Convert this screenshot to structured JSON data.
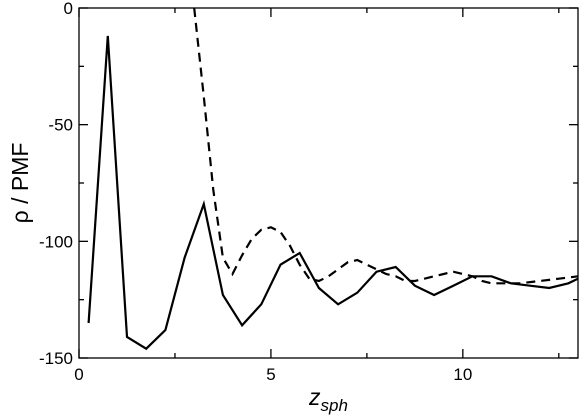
{
  "chart_data": {
    "type": "line",
    "title": "",
    "xlabel": "z",
    "xlabel_sub": "sph",
    "ylabel": "ρ / PMF",
    "xlim": [
      0,
      13
    ],
    "ylim": [
      -150,
      0
    ],
    "xticks": [
      0,
      5,
      10
    ],
    "xtick_labels": [
      "0",
      "5",
      "10"
    ],
    "yticks": [
      0,
      -50,
      -100,
      -150
    ],
    "ytick_labels": [
      "0",
      "-50",
      "-100",
      "-150"
    ],
    "grid": false,
    "legend": "none",
    "series": [
      {
        "style": "solid",
        "color": "#000000",
        "x": [
          0.25,
          0.75,
          1.25,
          1.75,
          2.25,
          2.75,
          3.25,
          3.75,
          4.25,
          4.75,
          5.25,
          5.75,
          6.25,
          6.75,
          7.25,
          7.75,
          8.25,
          8.75,
          9.25,
          9.75,
          10.25,
          10.75,
          11.25,
          11.75,
          12.25,
          12.75,
          13.0
        ],
        "y": [
          -135,
          -12,
          -141,
          -146,
          -138,
          -107,
          -84,
          -123,
          -136,
          -127,
          -110,
          -105,
          -120,
          -127,
          -122,
          -113,
          -111,
          -119,
          -123,
          -119,
          -115,
          -115,
          -118,
          -119,
          -120,
          -118,
          -116
        ]
      },
      {
        "style": "dashed",
        "color": "#000000",
        "x": [
          3.0,
          3.25,
          3.5,
          3.75,
          4.0,
          4.25,
          4.5,
          4.75,
          5.0,
          5.25,
          5.5,
          5.75,
          6.0,
          6.25,
          6.5,
          6.75,
          7.0,
          7.25,
          7.5,
          7.75,
          8.0,
          8.25,
          8.5,
          8.75,
          9.0,
          9.25,
          9.5,
          9.75,
          10.0,
          10.25,
          10.5,
          10.75,
          11.0,
          11.5,
          12.0,
          12.5,
          13.0
        ],
        "y": [
          0,
          -38,
          -78,
          -107,
          -114,
          -106,
          -99,
          -95,
          -94,
          -96,
          -102,
          -110,
          -116,
          -117,
          -115,
          -112,
          -109,
          -108,
          -110,
          -112,
          -114,
          -115,
          -117,
          -117,
          -116,
          -115,
          -114,
          -113,
          -114,
          -115,
          -117,
          -118,
          -118,
          -118,
          -117,
          -116,
          -115
        ]
      }
    ]
  }
}
